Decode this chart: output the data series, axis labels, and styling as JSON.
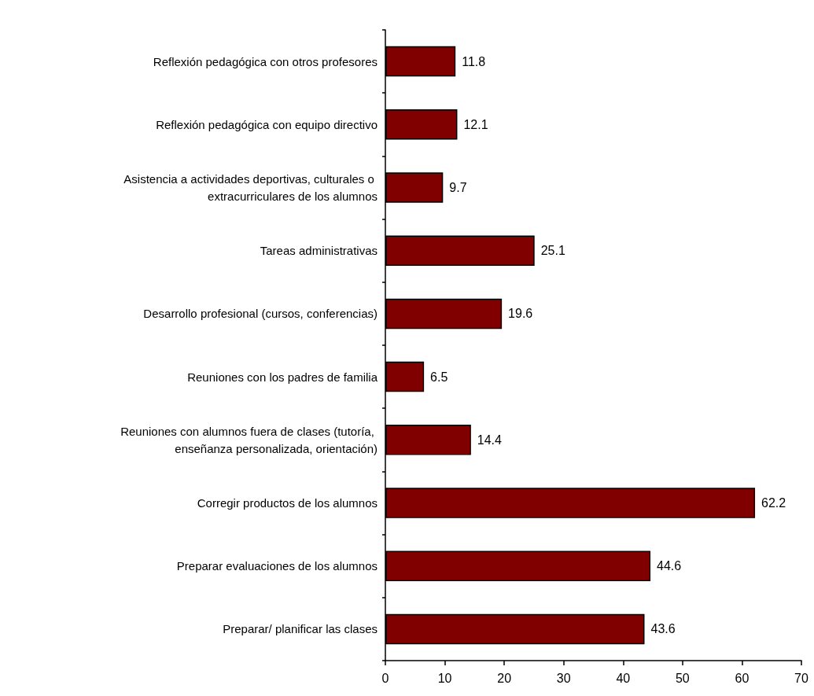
{
  "chart_data": {
    "type": "bar",
    "orientation": "horizontal",
    "categories": [
      "Reflexión pedagógica con otros profesores",
      "Reflexión pedagógica con equipo directivo",
      "Asistencia a actividades deportivas, culturales o extracurriculares de los alumnos",
      "Tareas administrativas",
      "Desarrollo profesional (cursos, conferencias)",
      "Reuniones con los padres de familia",
      "Reuniones con alumnos fuera de clases (tutoría, enseñanza personalizada, orientación)",
      "Corregir productos de los alumnos",
      "Preparar evaluaciones de los alumnos",
      "Preparar/ planificar las clases"
    ],
    "values": [
      11.8,
      12.1,
      9.7,
      25.1,
      19.6,
      6.5,
      14.4,
      62.2,
      44.6,
      43.6
    ],
    "color": "#800000",
    "xlim": [
      0,
      70
    ],
    "xticks": [
      0,
      10,
      20,
      30,
      40,
      50,
      60,
      70
    ],
    "data_labels": true,
    "grid": false
  }
}
